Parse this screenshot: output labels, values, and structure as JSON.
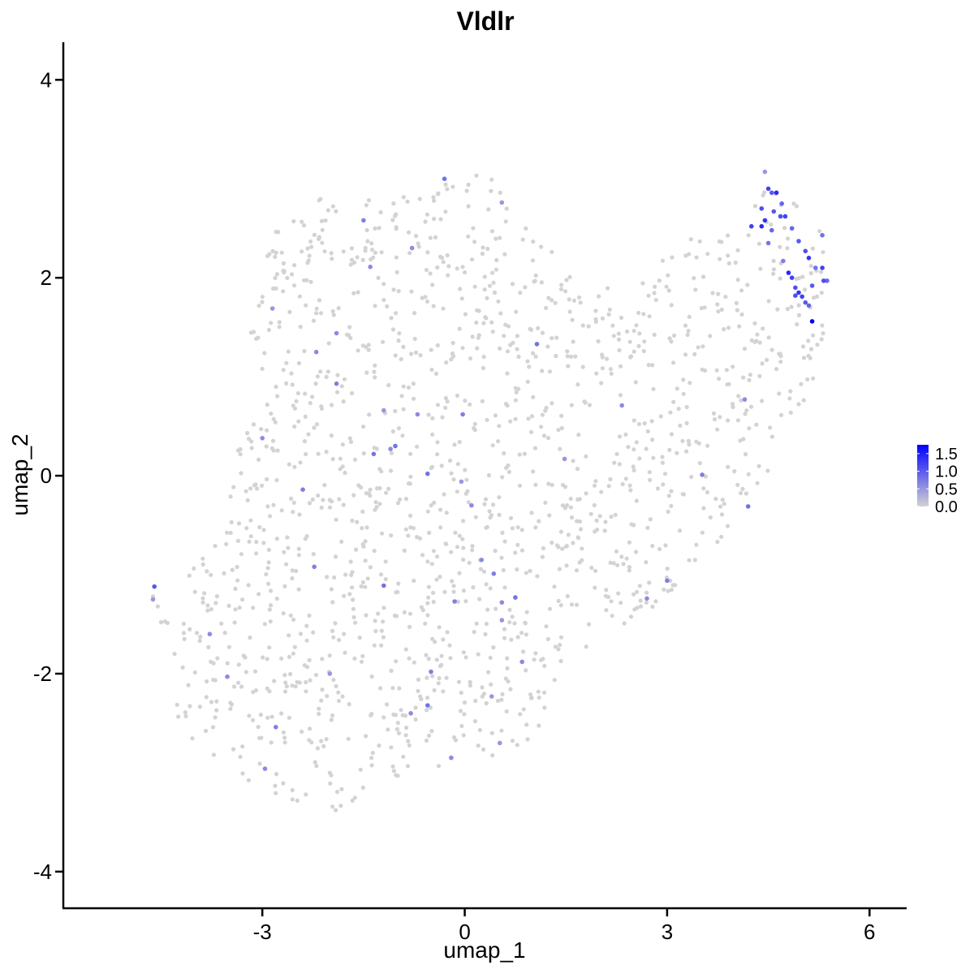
{
  "chart_data": {
    "type": "scatter",
    "title": "Vldlr",
    "xlabel": "umap_1",
    "ylabel": "umap_2",
    "xlim": [
      -5.95,
      6.55
    ],
    "ylim": [
      -4.37,
      4.38
    ],
    "x_ticks": [
      -3,
      0,
      3,
      6
    ],
    "y_ticks": [
      -4,
      -2,
      0,
      2,
      4
    ],
    "x_tick_labels": [
      "-3",
      "0",
      "3",
      "6"
    ],
    "y_tick_labels": [
      "-4",
      "-2",
      "0",
      "2",
      "4"
    ],
    "grid": false,
    "legend_position": "right",
    "colors": {
      "low": "#d3d3d3",
      "high": "#0000ff"
    },
    "color_scale": {
      "name": "",
      "min": 0.0,
      "max": 1.75,
      "ticks": [
        0.0,
        0.5,
        1.0,
        1.5
      ],
      "tick_labels": [
        "0.0",
        "0.5",
        "1.0",
        "1.5"
      ]
    },
    "background_cells": {
      "count": 1500,
      "value": 0.0,
      "description_regions": [
        {
          "x": [
            -4.2,
            -1.0
          ],
          "y": [
            -3.5,
            0.0
          ]
        },
        {
          "x": [
            -3.2,
            0.5
          ],
          "y": [
            -1.0,
            2.9
          ]
        },
        {
          "x": [
            -2.0,
            2.5
          ],
          "y": [
            -3.0,
            3.1
          ]
        },
        {
          "x": [
            -0.5,
            4.0
          ],
          "y": [
            -2.2,
            1.5
          ]
        },
        {
          "x": [
            2.0,
            5.3
          ],
          "y": [
            -0.8,
            2.6
          ]
        },
        {
          "x": [
            4.4,
            5.3
          ],
          "y": [
            1.6,
            3.0
          ]
        }
      ]
    },
    "expressing_cells": [
      {
        "x": -4.6,
        "y": -1.12,
        "v": 1.0
      },
      {
        "x": -4.62,
        "y": -1.25,
        "v": 0.5
      },
      {
        "x": -3.78,
        "y": -1.6,
        "v": 0.6
      },
      {
        "x": -3.52,
        "y": -2.03,
        "v": 0.6
      },
      {
        "x": -2.96,
        "y": -2.96,
        "v": 0.6
      },
      {
        "x": -2.8,
        "y": -2.54,
        "v": 0.7
      },
      {
        "x": -2.0,
        "y": -2.0,
        "v": 0.5
      },
      {
        "x": -2.23,
        "y": -0.92,
        "v": 0.7
      },
      {
        "x": -2.4,
        "y": -0.14,
        "v": 0.7
      },
      {
        "x": -3.0,
        "y": 0.38,
        "v": 0.6
      },
      {
        "x": -2.85,
        "y": 1.69,
        "v": 0.5
      },
      {
        "x": -2.2,
        "y": 1.25,
        "v": 0.6
      },
      {
        "x": -1.9,
        "y": 1.44,
        "v": 0.6
      },
      {
        "x": -1.9,
        "y": 0.93,
        "v": 0.7
      },
      {
        "x": -1.4,
        "y": 2.11,
        "v": 0.6
      },
      {
        "x": -1.5,
        "y": 2.58,
        "v": 0.7
      },
      {
        "x": -0.78,
        "y": 2.3,
        "v": 0.6
      },
      {
        "x": -0.3,
        "y": 3.0,
        "v": 0.8
      },
      {
        "x": 0.55,
        "y": 2.76,
        "v": 0.5
      },
      {
        "x": -1.35,
        "y": 0.22,
        "v": 0.8
      },
      {
        "x": -1.2,
        "y": 0.66,
        "v": 0.5
      },
      {
        "x": -1.03,
        "y": 0.3,
        "v": 0.8
      },
      {
        "x": -0.7,
        "y": 0.62,
        "v": 0.6
      },
      {
        "x": -1.1,
        "y": 0.27,
        "v": 0.6
      },
      {
        "x": -0.55,
        "y": 0.02,
        "v": 0.8
      },
      {
        "x": -0.03,
        "y": 0.62,
        "v": 0.7
      },
      {
        "x": -0.05,
        "y": -0.06,
        "v": 0.5
      },
      {
        "x": 0.1,
        "y": -0.3,
        "v": 0.6
      },
      {
        "x": 1.07,
        "y": 1.33,
        "v": 0.8
      },
      {
        "x": 1.48,
        "y": 0.17,
        "v": 0.5
      },
      {
        "x": 2.33,
        "y": 0.71,
        "v": 0.6
      },
      {
        "x": -1.2,
        "y": -1.11,
        "v": 0.8
      },
      {
        "x": -0.15,
        "y": -1.27,
        "v": 0.7
      },
      {
        "x": 0.25,
        "y": -0.85,
        "v": 0.6
      },
      {
        "x": 0.43,
        "y": -0.99,
        "v": 0.7
      },
      {
        "x": 0.55,
        "y": -1.28,
        "v": 0.6
      },
      {
        "x": 0.55,
        "y": -1.46,
        "v": 0.5
      },
      {
        "x": 0.75,
        "y": -1.23,
        "v": 0.8
      },
      {
        "x": 0.85,
        "y": -1.88,
        "v": 0.6
      },
      {
        "x": -0.5,
        "y": -1.98,
        "v": 0.7
      },
      {
        "x": -0.55,
        "y": -2.32,
        "v": 0.8
      },
      {
        "x": -0.8,
        "y": -2.4,
        "v": 0.6
      },
      {
        "x": -0.2,
        "y": -2.85,
        "v": 0.6
      },
      {
        "x": 0.4,
        "y": -2.23,
        "v": 0.5
      },
      {
        "x": 0.52,
        "y": -2.7,
        "v": 0.5
      },
      {
        "x": 2.7,
        "y": -1.24,
        "v": 0.6
      },
      {
        "x": 3.0,
        "y": -1.06,
        "v": 0.7
      },
      {
        "x": 3.52,
        "y": 0.01,
        "v": 0.7
      },
      {
        "x": 4.15,
        "y": 0.77,
        "v": 0.6
      },
      {
        "x": 4.2,
        "y": -0.31,
        "v": 0.8
      },
      {
        "x": 4.45,
        "y": 3.07,
        "v": 0.5
      },
      {
        "x": 4.5,
        "y": 2.9,
        "v": 1.2
      },
      {
        "x": 4.55,
        "y": 2.86,
        "v": 1.0
      },
      {
        "x": 4.62,
        "y": 2.86,
        "v": 1.4
      },
      {
        "x": 4.75,
        "y": 2.62,
        "v": 1.2
      },
      {
        "x": 4.7,
        "y": 2.75,
        "v": 0.9
      },
      {
        "x": 4.4,
        "y": 2.7,
        "v": 1.1
      },
      {
        "x": 4.45,
        "y": 2.58,
        "v": 1.3
      },
      {
        "x": 4.58,
        "y": 2.67,
        "v": 1.0
      },
      {
        "x": 4.25,
        "y": 2.52,
        "v": 1.2
      },
      {
        "x": 4.4,
        "y": 2.52,
        "v": 1.4
      },
      {
        "x": 4.55,
        "y": 2.48,
        "v": 0.9
      },
      {
        "x": 4.68,
        "y": 2.62,
        "v": 1.1
      },
      {
        "x": 4.85,
        "y": 2.5,
        "v": 0.9
      },
      {
        "x": 4.95,
        "y": 2.37,
        "v": 1.0
      },
      {
        "x": 5.05,
        "y": 2.27,
        "v": 1.1
      },
      {
        "x": 5.1,
        "y": 2.2,
        "v": 1.3
      },
      {
        "x": 4.5,
        "y": 2.35,
        "v": 0.8
      },
      {
        "x": 4.8,
        "y": 2.05,
        "v": 1.4
      },
      {
        "x": 4.85,
        "y": 2.0,
        "v": 1.2
      },
      {
        "x": 4.9,
        "y": 1.9,
        "v": 1.1
      },
      {
        "x": 4.95,
        "y": 1.85,
        "v": 1.3
      },
      {
        "x": 5.0,
        "y": 1.81,
        "v": 1.2
      },
      {
        "x": 5.05,
        "y": 1.75,
        "v": 1.0
      },
      {
        "x": 5.1,
        "y": 1.72,
        "v": 0.9
      },
      {
        "x": 4.9,
        "y": 1.82,
        "v": 1.1
      },
      {
        "x": 5.15,
        "y": 1.92,
        "v": 1.0
      },
      {
        "x": 5.2,
        "y": 2.1,
        "v": 0.8
      },
      {
        "x": 5.3,
        "y": 2.1,
        "v": 1.2
      },
      {
        "x": 5.32,
        "y": 1.97,
        "v": 1.1
      },
      {
        "x": 5.37,
        "y": 1.97,
        "v": 0.9
      },
      {
        "x": 5.3,
        "y": 2.43,
        "v": 0.8
      },
      {
        "x": 5.15,
        "y": 1.56,
        "v": 1.75
      },
      {
        "x": 4.72,
        "y": 2.17,
        "v": 0.7
      }
    ]
  }
}
